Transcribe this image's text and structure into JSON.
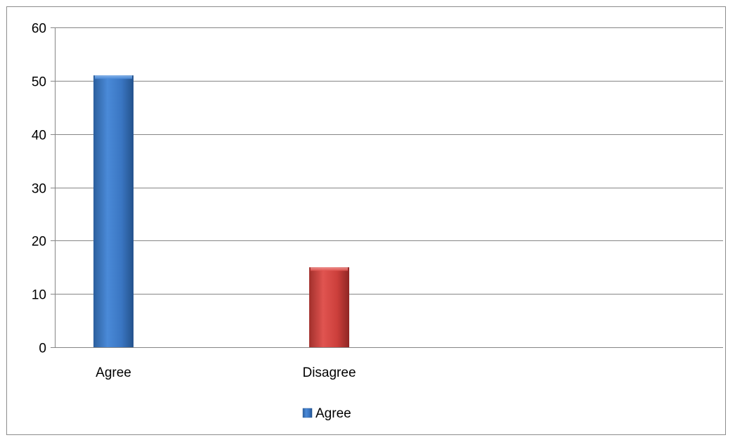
{
  "chart_data": {
    "type": "bar",
    "categories": [
      "Agree",
      "Disagree"
    ],
    "values": [
      51,
      15
    ],
    "bar_colors": [
      "#3f7fce",
      "#d2403c"
    ],
    "ylim": [
      0,
      60
    ],
    "yticks": [
      0,
      10,
      20,
      30,
      40,
      50,
      60
    ],
    "grid": true,
    "legend": {
      "position": "bottom",
      "entries": [
        {
          "label": "Agree",
          "color": "#3f7fce"
        }
      ]
    },
    "title": "",
    "xlabel": "",
    "ylabel": ""
  }
}
